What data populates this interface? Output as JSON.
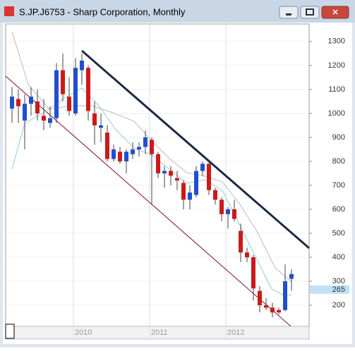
{
  "window": {
    "title": "S.JP.J6753 - Sharp Corporation, Monthly"
  },
  "chart_data": {
    "type": "candlestick",
    "categories": [
      null,
      null,
      null,
      null,
      null,
      null,
      null,
      null,
      null,
      null,
      "2010",
      null,
      null,
      null,
      null,
      null,
      null,
      null,
      null,
      null,
      null,
      null,
      "2011",
      null,
      null,
      null,
      null,
      null,
      null,
      null,
      null,
      null,
      null,
      null,
      "2012",
      null,
      null,
      null,
      null,
      null,
      null,
      null,
      null,
      null,
      null
    ],
    "open": [
      1020,
      1060,
      970,
      1040,
      1050,
      990,
      960,
      980,
      1180,
      1070,
      1000,
      1180,
      1190,
      1000,
      940,
      920,
      810,
      840,
      800,
      830,
      850,
      860,
      890,
      830,
      750,
      760,
      730,
      710,
      640,
      660,
      760,
      790,
      680,
      640,
      580,
      600,
      510,
      420,
      400,
      260,
      200,
      190,
      180,
      180,
      310
    ],
    "high": [
      1110,
      1100,
      1080,
      1110,
      1100,
      1060,
      1030,
      1210,
      1250,
      1150,
      1230,
      1250,
      1200,
      1050,
      1000,
      950,
      870,
      860,
      850,
      880,
      880,
      930,
      900,
      840,
      780,
      780,
      760,
      720,
      700,
      780,
      800,
      800,
      690,
      650,
      610,
      640,
      540,
      440,
      410,
      280,
      230,
      210,
      190,
      370,
      350
    ],
    "low": [
      960,
      960,
      850,
      990,
      970,
      930,
      940,
      960,
      1050,
      990,
      990,
      1120,
      970,
      870,
      880,
      800,
      800,
      790,
      750,
      810,
      820,
      830,
      620,
      730,
      690,
      700,
      680,
      600,
      600,
      650,
      740,
      660,
      620,
      550,
      520,
      550,
      380,
      380,
      220,
      170,
      180,
      150,
      160,
      175,
      260
    ],
    "close": [
      1070,
      1030,
      1040,
      1070,
      1000,
      970,
      980,
      1180,
      1080,
      1010,
      1190,
      1220,
      1010,
      950,
      950,
      810,
      850,
      800,
      840,
      850,
      860,
      900,
      830,
      750,
      760,
      740,
      720,
      640,
      670,
      760,
      790,
      680,
      640,
      580,
      600,
      560,
      420,
      400,
      270,
      200,
      190,
      170,
      170,
      300,
      330
    ],
    "up_color": "#1f4fd0",
    "down_color": "#cc1a1a",
    "ylim": [
      112,
      1373
    ],
    "yticks": [
      200,
      300,
      400,
      500,
      600,
      700,
      800,
      900,
      1000,
      1100,
      1200,
      1300
    ],
    "last_price": 265
  }
}
